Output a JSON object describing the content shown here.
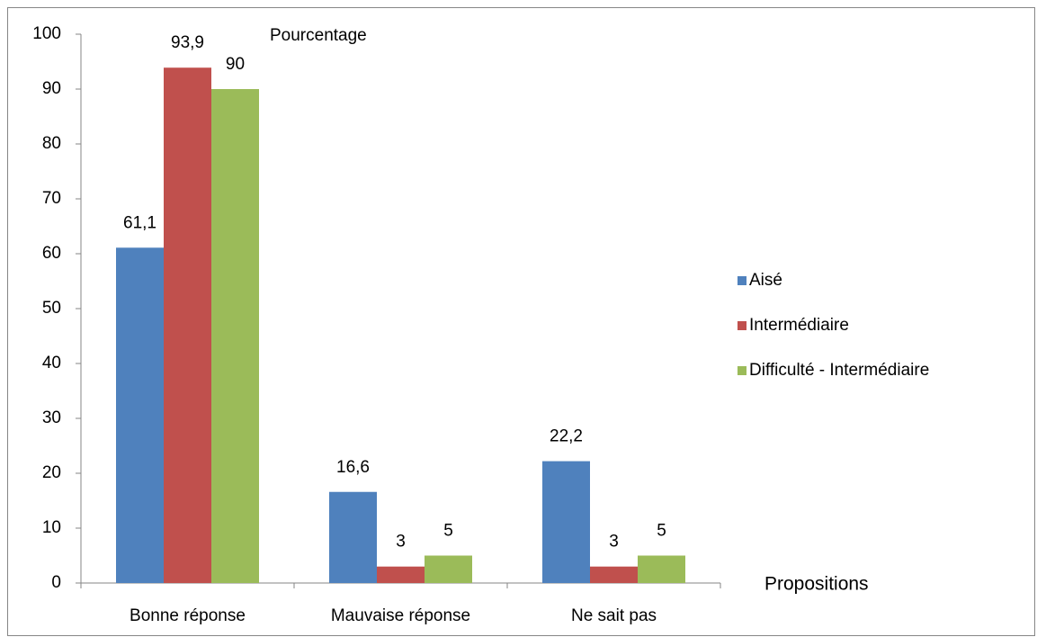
{
  "chart_data": {
    "type": "bar",
    "y_label": "Pourcentage",
    "x_label": "Propositions",
    "categories": [
      "Bonne réponse",
      "Mauvaise réponse",
      "Ne sait pas"
    ],
    "series": [
      {
        "name": "Aisé",
        "color": "#4f81bd",
        "values": [
          61.1,
          16.6,
          22.2
        ],
        "value_labels": [
          "61,1",
          "16,6",
          "22,2"
        ]
      },
      {
        "name": "Intermédiaire",
        "color": "#c0504d",
        "values": [
          93.9,
          3,
          3
        ],
        "value_labels": [
          "93,9",
          "3",
          "3"
        ]
      },
      {
        "name": "Difficulté - Intermédiaire",
        "color": "#9bbb59",
        "values": [
          90,
          5,
          5
        ],
        "value_labels": [
          "90",
          "5",
          "5"
        ]
      }
    ],
    "ylim": [
      0,
      100
    ],
    "yticks": [
      0,
      10,
      20,
      30,
      40,
      50,
      60,
      70,
      80,
      90,
      100
    ],
    "grid": false,
    "legend": "right"
  }
}
